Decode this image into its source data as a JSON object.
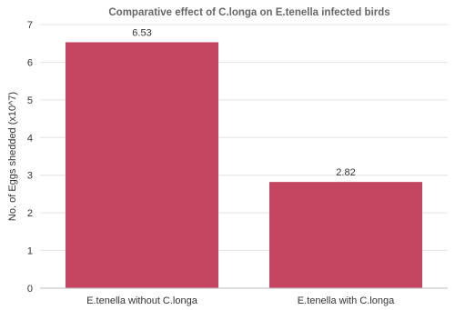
{
  "chart_data": {
    "type": "bar",
    "title": "Comparative effect of C.longa on E.tenella infected birds",
    "xlabel": "",
    "ylabel": "No. of Eggs shedded (x10^7)",
    "categories": [
      "E.tenella without C.longa",
      "E.tenella with C.longa"
    ],
    "values": [
      6.53,
      2.82
    ],
    "data_labels": [
      "6.53",
      "2.82"
    ],
    "ylim": [
      0,
      7
    ],
    "yticks": [
      0,
      1,
      2,
      3,
      4,
      5,
      6,
      7
    ],
    "grid": true,
    "legend": "none",
    "bar_color": "#c44560"
  }
}
